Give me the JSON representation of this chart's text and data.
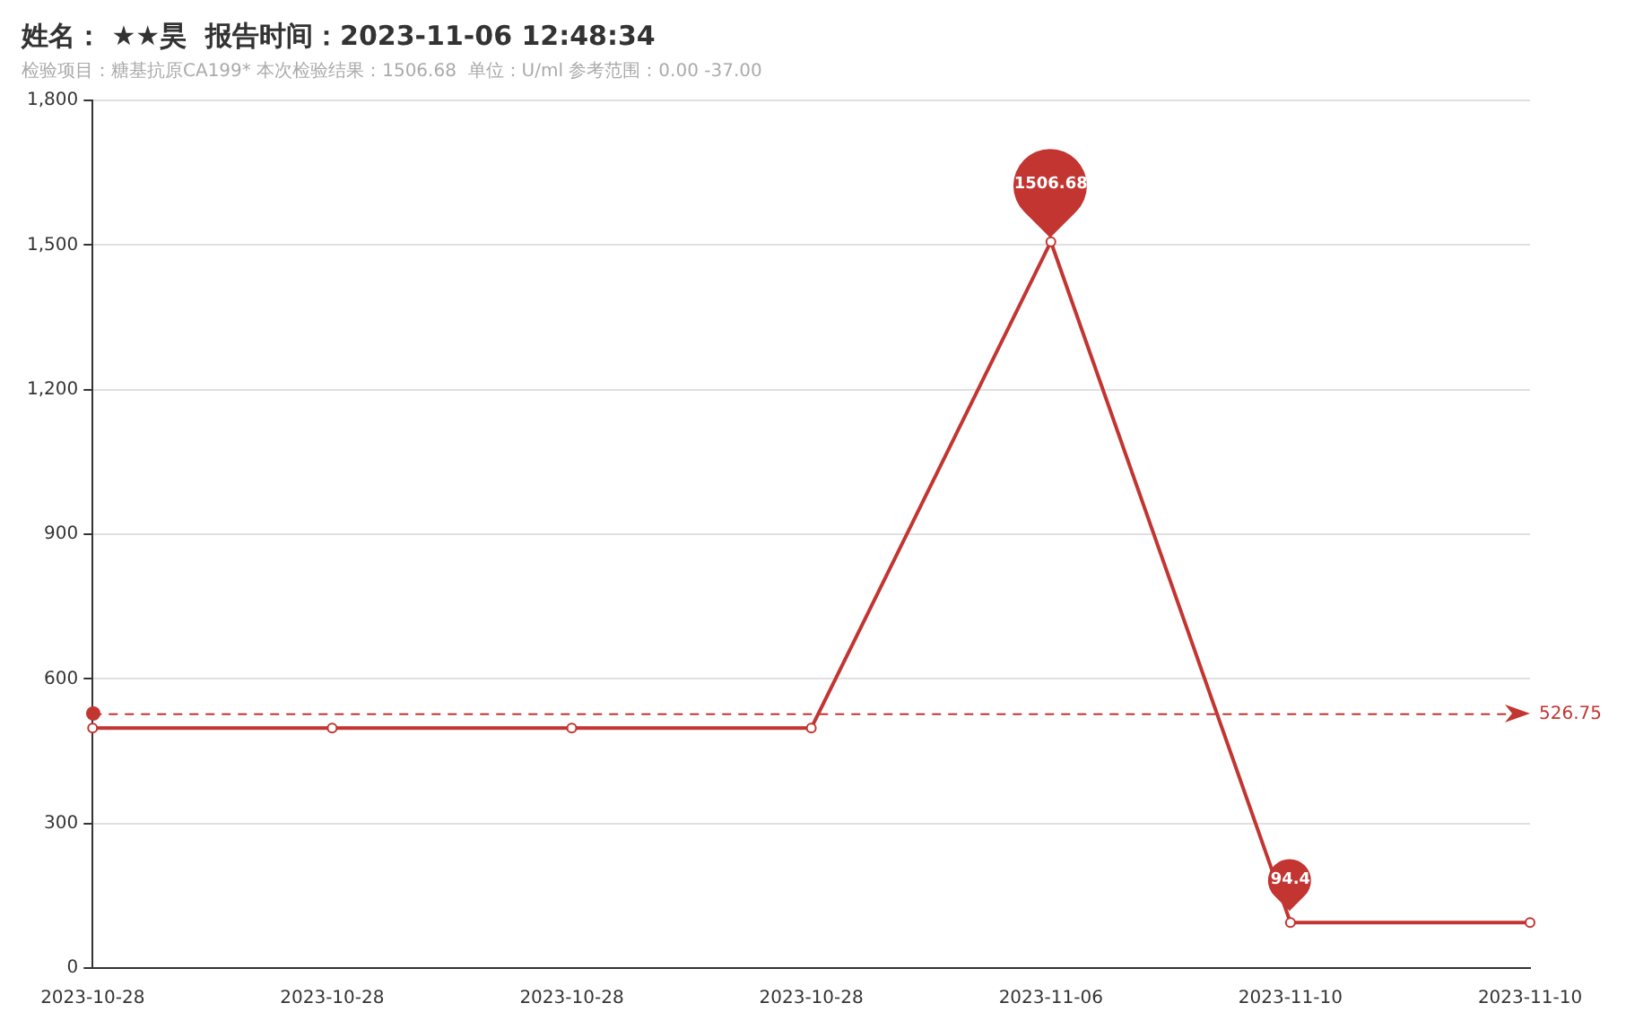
{
  "chart_data": {
    "type": "line",
    "title": "姓名： ★★昊  报告时间：2023-11-06 12:48:34",
    "subtitle": "检验项目：糖基抗原CA199* 本次检验结果：1506.68  单位：U/ml 参考范围：0.00 -37.00",
    "categories": [
      "2023-10-28",
      "2023-10-28",
      "2023-10-28",
      "2023-10-28",
      "2023-11-06",
      "2023-11-10",
      "2023-11-10"
    ],
    "series": [
      {
        "color": "#c23531",
        "values": [
          498,
          498,
          498,
          498,
          1506.68,
          94.4,
          94.4
        ],
        "value_labels": [
          null,
          null,
          null,
          null,
          "1506.68",
          "94.4",
          null
        ]
      }
    ],
    "ylim": [
      0,
      1800
    ],
    "yticks": [
      0,
      300,
      600,
      900,
      {
        "value": 1200,
        "label": "1,200"
      },
      {
        "value": 1500,
        "label": "1,500"
      },
      {
        "value": 1800,
        "label": "1,800"
      }
    ],
    "ref_lines": [
      {
        "axis": "y",
        "value": 526.75,
        "label": "526.75",
        "color": "#c23531",
        "line_style": "dashed"
      }
    ],
    "grid": "y",
    "legend": false,
    "marker": "circle",
    "line_style": "solid"
  }
}
